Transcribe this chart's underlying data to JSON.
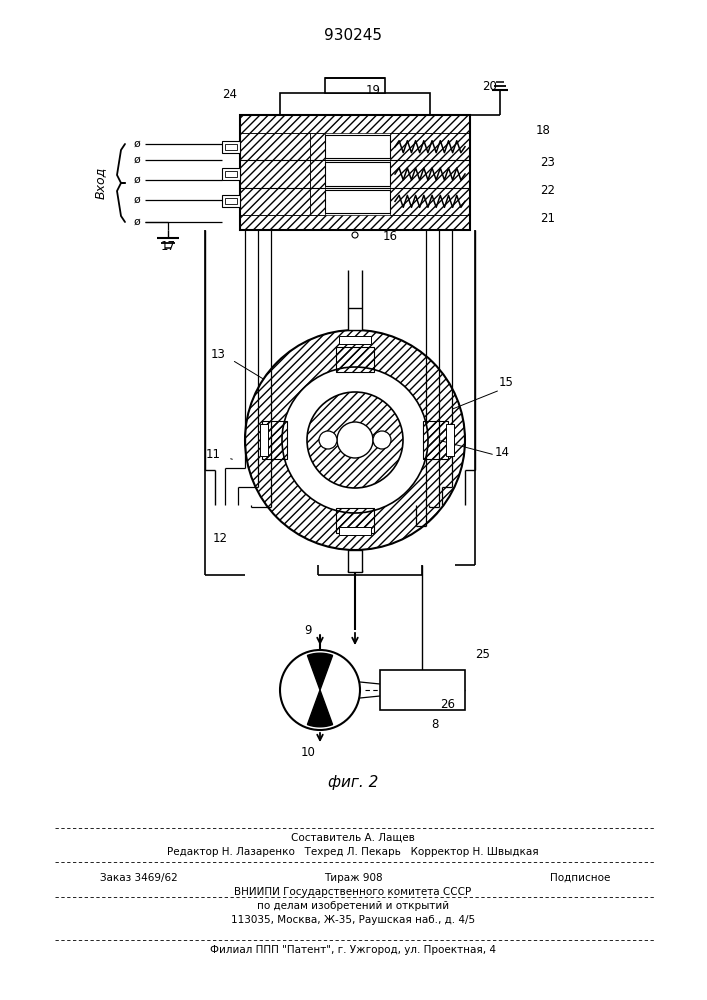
{
  "title": "930245",
  "fig_label": "фиг. 2",
  "vkhod": "Вход",
  "footer_line1": "Составитель А. Лащев",
  "footer_line2": "Редактор Н. Лазаренко   Техред Л. Пекарь   Корректор Н. Швыдкая",
  "footer_line3a": "Заказ 3469/62",
  "footer_line3b": "Тираж 908",
  "footer_line3c": "Подписное",
  "footer_line4": "ВНИИПИ Государственного комитета СССР",
  "footer_line5": "по делам изобретений и открытий",
  "footer_line6": "113035, Москва, Ж-35, Раушская наб., д. 4/5",
  "footer_line7": "Филиал ППП \"Патент\", г. Ужгород, ул. Проектная, 4",
  "bg": "#ffffff"
}
